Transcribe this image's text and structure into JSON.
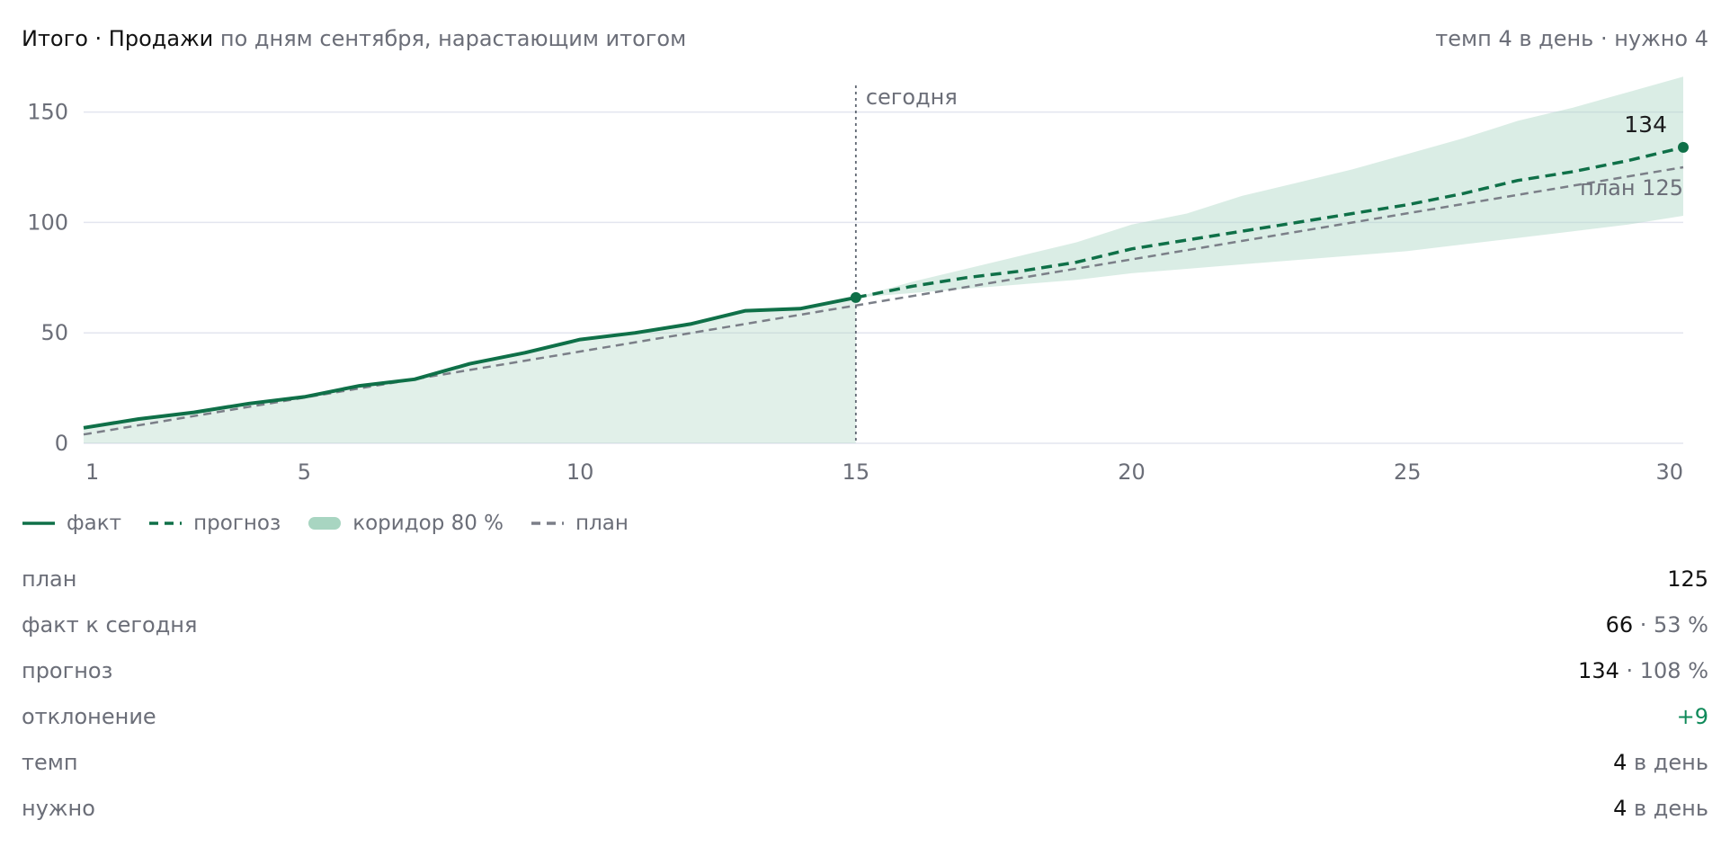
{
  "header": {
    "title": "Итого · Продажи",
    "subtitle": "по дням сентября, нарастающим итогом",
    "summary": "темп 4 в день · нужно 4"
  },
  "colors": {
    "fact": "#0f7048",
    "forecast": "#0f7048",
    "corridor": "#a8d5c1",
    "plan": "#7b7f88",
    "grid": "#e3e5ef",
    "positive": "#0f8a5a"
  },
  "legend": [
    {
      "key": "fact",
      "label": "факт",
      "style": "solid-line"
    },
    {
      "key": "forecast",
      "label": "прогноз",
      "style": "dashed-line"
    },
    {
      "key": "corridor",
      "label": "коридор 80 %",
      "style": "band"
    },
    {
      "key": "plan",
      "label": "план",
      "style": "dashed-line-gray"
    }
  ],
  "chart_data": {
    "type": "line",
    "x_ticks": [
      1,
      5,
      10,
      15,
      20,
      25,
      30
    ],
    "y_ticks": [
      0,
      50,
      100,
      150
    ],
    "xlim": [
      1,
      30
    ],
    "ylim": [
      0,
      160
    ],
    "grid": true,
    "today_label": "сегодня",
    "today_x": 15,
    "fact": {
      "x": [
        1,
        2,
        3,
        4,
        5,
        6,
        7,
        8,
        9,
        10,
        11,
        12,
        13,
        14,
        15
      ],
      "y": [
        7,
        11,
        14,
        18,
        21,
        26,
        29,
        36,
        41,
        47,
        50,
        54,
        60,
        61,
        66
      ]
    },
    "forecast": {
      "x": [
        15,
        16,
        17,
        18,
        19,
        20,
        21,
        22,
        23,
        24,
        25,
        26,
        27,
        28,
        29,
        30
      ],
      "y": [
        66,
        71,
        75,
        78,
        82,
        88,
        92,
        96,
        100,
        104,
        108,
        113,
        119,
        123,
        128,
        134
      ],
      "end_label": "134"
    },
    "corridor": {
      "x": [
        15,
        16,
        17,
        18,
        19,
        20,
        21,
        22,
        23,
        24,
        25,
        26,
        27,
        28,
        29,
        30
      ],
      "low": [
        66,
        68,
        70,
        72,
        74,
        77,
        79,
        81,
        83,
        85,
        87,
        90,
        93,
        96,
        99,
        103
      ],
      "high": [
        66,
        73,
        79,
        85,
        91,
        99,
        104,
        112,
        118,
        124,
        131,
        138,
        146,
        152,
        159,
        166
      ]
    },
    "plan": {
      "x": [
        1,
        30
      ],
      "y": [
        4,
        125
      ],
      "end_label": "план 125"
    }
  },
  "stats": [
    {
      "label": "план",
      "value": "125"
    },
    {
      "label": "факт к сегодня",
      "value": "66",
      "sep": " · ",
      "sub": "53 %"
    },
    {
      "label": "прогноз",
      "value": "134",
      "sep": " · ",
      "sub": "108 %"
    },
    {
      "label": "отклонение",
      "value": "+9",
      "positive": true
    },
    {
      "label": "темп",
      "value": "4",
      "sub": " в день"
    },
    {
      "label": "нужно",
      "value": "4",
      "sub": " в день"
    }
  ]
}
